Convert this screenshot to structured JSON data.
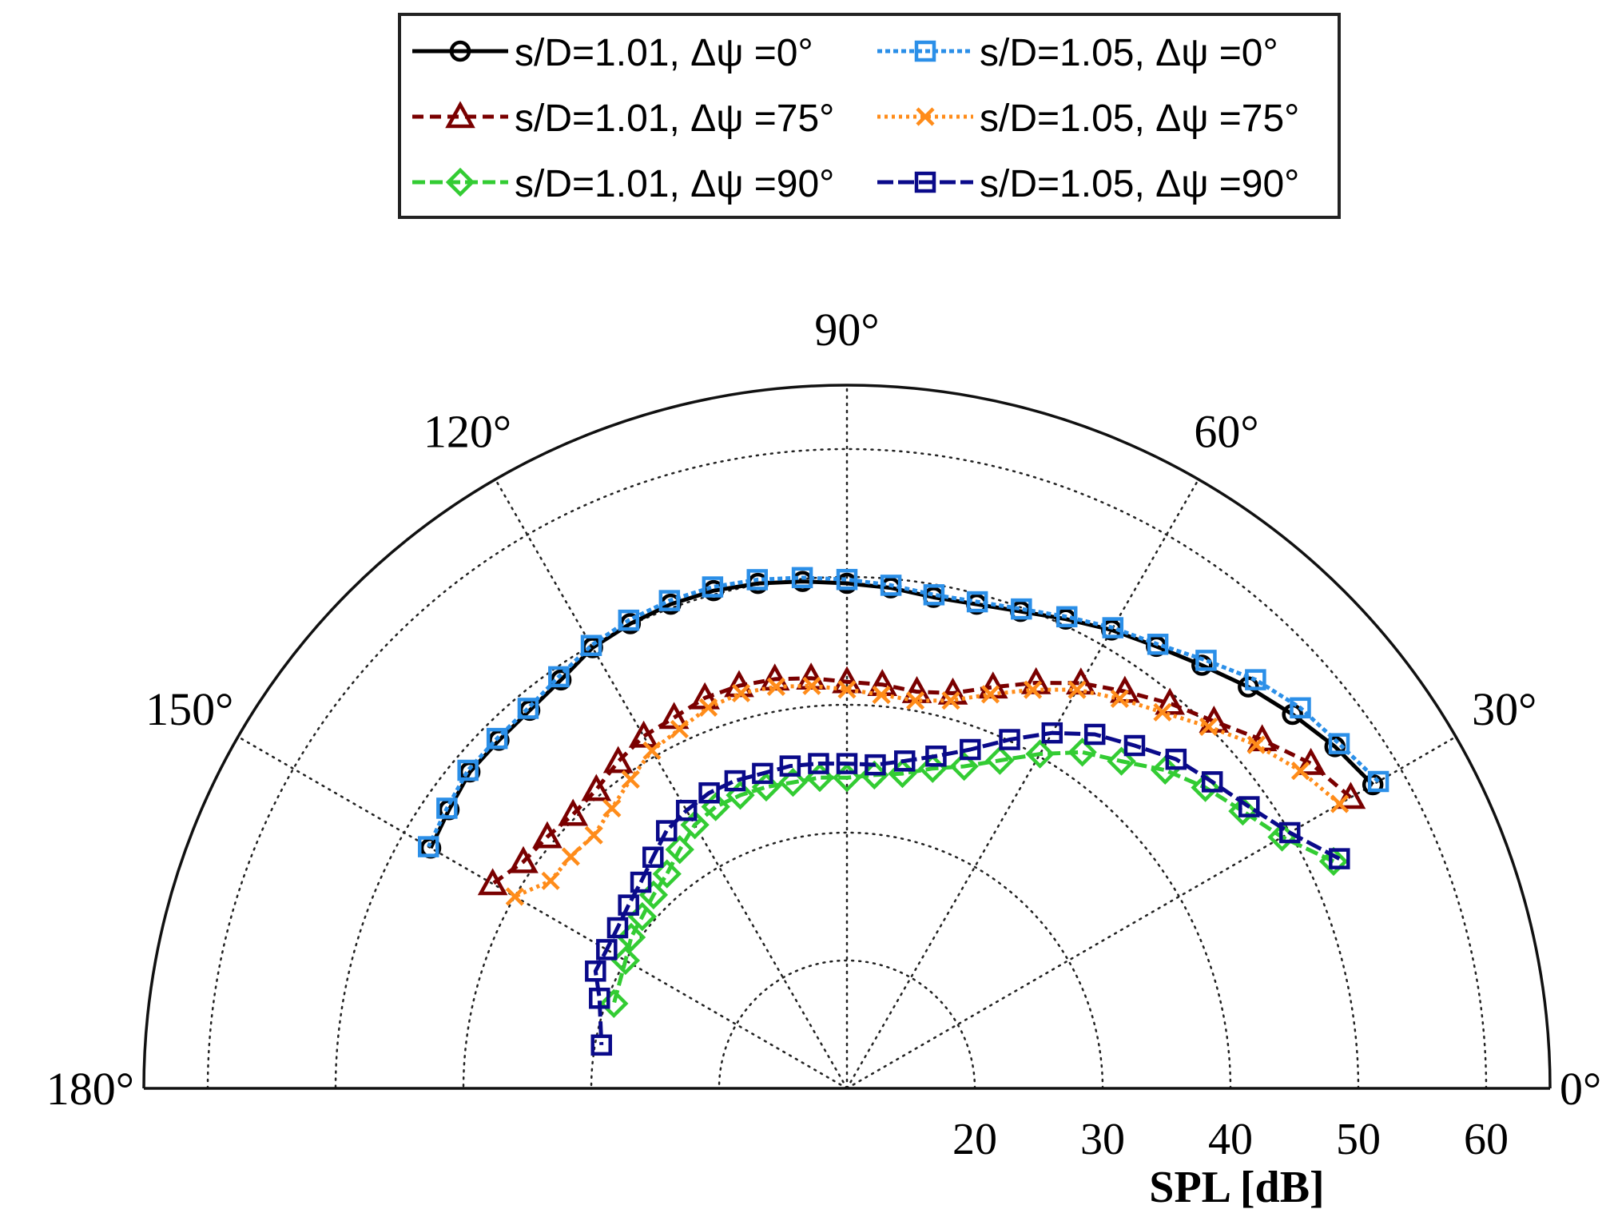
{
  "chart_data": {
    "type": "polar-half",
    "theta_range_deg": [
      0,
      180
    ],
    "r_axis": {
      "label": "SPL [dB]",
      "min": 10,
      "max": 65,
      "ticks": [
        20,
        30,
        40,
        50,
        60
      ]
    },
    "angle_ticks": [
      {
        "deg": 0,
        "label": "0°"
      },
      {
        "deg": 30,
        "label": "30°"
      },
      {
        "deg": 60,
        "label": "60°"
      },
      {
        "deg": 90,
        "label": "90°"
      },
      {
        "deg": 120,
        "label": "120°"
      },
      {
        "deg": 150,
        "label": "150°"
      },
      {
        "deg": 180,
        "label": "180°"
      }
    ],
    "grid": true,
    "legend_position": "top-center",
    "series": [
      {
        "name": "s/D=1.01, Δψ =0°",
        "color": "#000000",
        "dash": "solid",
        "marker": "circle",
        "theta": [
          30,
          35,
          40,
          45,
          50,
          55,
          60,
          65,
          70,
          75,
          80,
          85,
          90,
          95,
          100,
          105,
          110,
          115,
          120,
          125,
          130,
          135,
          140,
          145,
          150
        ],
        "r": [
          57.5,
          56.6,
          55.5,
          54.4,
          53.2,
          52.2,
          51.4,
          50.5,
          49.7,
          49.2,
          49.0,
          49.3,
          49.5,
          49.8,
          50.1,
          50.3,
          50.3,
          50.1,
          49.8,
          49.0,
          48.6,
          48.5,
          48.5,
          48.0,
          47.6
        ]
      },
      {
        "name": "s/D=1.05, Δψ =0°",
        "color": "#2b8fe8",
        "dash": "6,4",
        "marker": "square",
        "theta": [
          30,
          35,
          40,
          45,
          50,
          55,
          60,
          65,
          70,
          75,
          80,
          85,
          90,
          95,
          100,
          105,
          110,
          115,
          120,
          125,
          130,
          135,
          140,
          145,
          150
        ],
        "r": [
          58.0,
          57.0,
          56.3,
          55.2,
          53.7,
          52.4,
          51.6,
          50.7,
          49.9,
          49.4,
          49.2,
          49.5,
          49.8,
          50.1,
          50.4,
          50.6,
          50.6,
          50.4,
          50.0,
          49.3,
          48.8,
          48.7,
          48.7,
          48.2,
          47.8
        ]
      },
      {
        "name": "s/D=1.01, Δψ =75°",
        "color": "#7a0000",
        "dash": "14,8",
        "marker": "triangle",
        "theta": [
          30,
          35,
          40,
          45,
          50,
          55,
          60,
          65,
          70,
          75,
          80,
          85,
          90,
          95,
          100,
          105,
          110,
          115,
          120,
          125,
          130,
          135,
          140,
          145,
          150
        ],
        "r": [
          55.5,
          54.3,
          52.4,
          50.6,
          49.3,
          47.9,
          46.6,
          45.0,
          43.4,
          42.0,
          41.5,
          41.7,
          41.8,
          42.2,
          42.5,
          42.6,
          42.5,
          42.0,
          41.8,
          41.2,
          40.5,
          40.3,
          40.6,
          40.9,
          42.0
        ]
      },
      {
        "name": "s/D=1.05, Δψ =75°",
        "color": "#ff8c1a",
        "dash": "4,5",
        "marker": "x",
        "theta": [
          30,
          35,
          40,
          45,
          50,
          55,
          60,
          65,
          70,
          75,
          80,
          85,
          90,
          95,
          100,
          105,
          110,
          115,
          120,
          125,
          130,
          135,
          140,
          145,
          150
        ],
        "r": [
          54.5,
          53.3,
          51.8,
          50.0,
          48.4,
          47.2,
          46.0,
          44.4,
          42.8,
          41.4,
          40.8,
          40.9,
          41.2,
          41.6,
          41.9,
          42.0,
          41.7,
          41.0,
          40.5,
          39.5,
          38.6,
          38.0,
          38.2,
          38.3,
          40.0
        ]
      },
      {
        "name": "s/D=1.01, Δψ =90°",
        "color": "#33cc33",
        "dash": "16,6",
        "marker": "diamond",
        "theta": [
          25,
          30,
          35,
          40,
          45,
          50,
          55,
          60,
          65,
          70,
          75,
          80,
          85,
          90,
          95,
          100,
          105,
          110,
          115,
          120,
          125,
          130,
          135,
          140,
          145,
          150,
          160
        ],
        "r": [
          52.0,
          49.3,
          47.8,
          46.6,
          45.2,
          43.4,
          42.1,
          40.2,
          38.3,
          36.8,
          35.9,
          35.0,
          34.6,
          34.3,
          34.4,
          34.3,
          34.4,
          34.4,
          34.3,
          33.8,
          32.8,
          31.9,
          31.4,
          30.9,
          30.6,
          30.0,
          29.4
        ]
      },
      {
        "name": "s/D=1.05, Δψ =90°",
        "color": "#0a0a8a",
        "dash": "20,6",
        "marker": "square",
        "theta": [
          25,
          30,
          35,
          40,
          45,
          50,
          55,
          60,
          65,
          70,
          75,
          80,
          85,
          90,
          95,
          100,
          105,
          110,
          115,
          120,
          125,
          130,
          135,
          140,
          145,
          150,
          155,
          160,
          170
        ],
        "r": [
          52.5,
          50.0,
          48.4,
          47.3,
          46.4,
          45.0,
          43.8,
          42.1,
          40.1,
          38.2,
          36.9,
          36.0,
          35.4,
          35.4,
          35.5,
          35.6,
          35.5,
          35.6,
          35.5,
          35.1,
          34.6,
          33.6,
          32.8,
          32.3,
          31.9,
          31.7,
          31.7,
          30.6,
          29.5
        ]
      }
    ]
  }
}
